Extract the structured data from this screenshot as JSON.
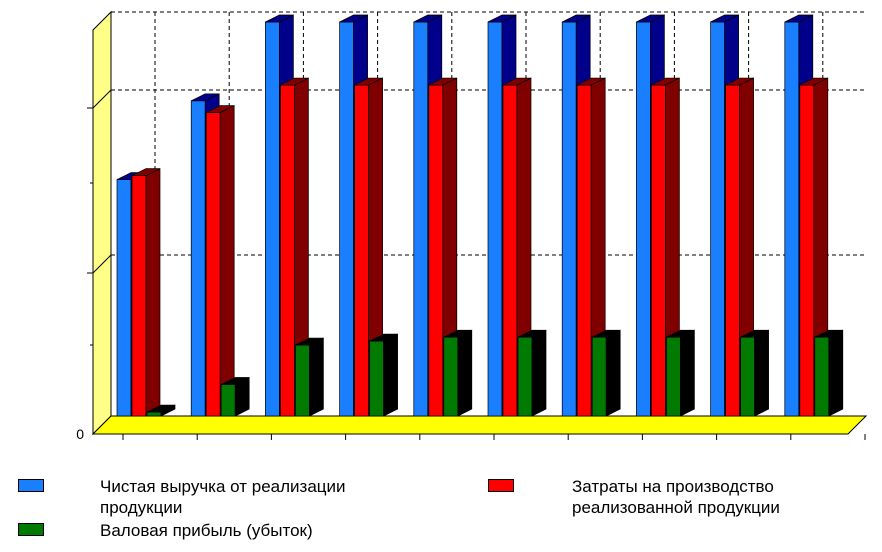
{
  "chart_data": {
    "type": "bar",
    "style": "3d-clustered",
    "title": "",
    "xlabel": "",
    "ylabel": "",
    "categories": [
      "",
      "",
      "",
      "",
      "",
      "",
      "",
      "",
      "",
      ""
    ],
    "ylim": [
      0,
      100
    ],
    "y_tick_labels": [
      "0"
    ],
    "grid": "dashed",
    "legend_position": "bottom",
    "series": [
      {
        "name": "Чистая выручка от реализации продукции",
        "color": "#1a7fff",
        "side_color": "#00008b",
        "values": [
          60,
          80,
          100,
          100,
          100,
          100,
          100,
          100,
          100,
          100
        ]
      },
      {
        "name": "Затраты на производство реализованной продукции",
        "color": "#ff0000",
        "side_color": "#800000",
        "values": [
          61,
          77,
          84,
          84,
          84,
          84,
          84,
          84,
          84,
          84
        ]
      },
      {
        "name": "Валовая прибыль (убыток)",
        "color": "#007a00",
        "side_color": "#000000",
        "values": [
          1,
          8,
          18,
          19,
          20,
          20,
          20,
          20,
          20,
          20
        ]
      }
    ]
  },
  "colors": {
    "wall": "#ffff88",
    "floor": "#ffff00",
    "grid": "#000000"
  }
}
